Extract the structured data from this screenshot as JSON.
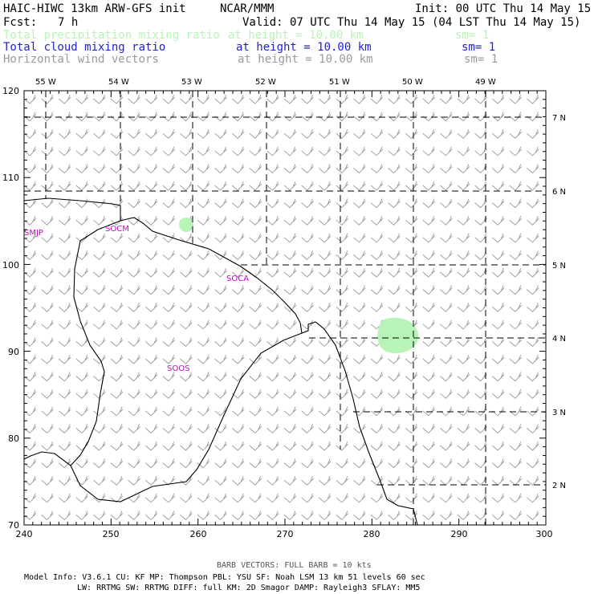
{
  "header": {
    "title": "HAIC-HIWC 13km ARW-GFS init",
    "org": "NCAR/MMM",
    "init": "Init: 00 UTC Thu 14 May 15",
    "fcst_label": "Fcst:",
    "fcst_value": "7 h",
    "valid": "Valid: 07 UTC Thu 14 May 15 (04 LST Thu 14 May 15)"
  },
  "fields": [
    {
      "name": "Total precipitation mixing ratio",
      "height": "at height = 10.00 km",
      "sm": "sm= 1",
      "color": "#b8f3b8"
    },
    {
      "name": "Total cloud mixing ratio",
      "height": "at height = 10.00 km",
      "sm": "sm= 1",
      "color": "#1f1fd6"
    },
    {
      "name": "Horizontal wind vectors",
      "height": "at height = 10.00 km",
      "sm": "sm= 1",
      "color": "#9a9a9a"
    }
  ],
  "lon_labels": [
    "55 W",
    "54 W",
    "53 W",
    "52 W",
    "51 W",
    "50 W",
    "49 W"
  ],
  "lat_labels": [
    "7 N",
    "6 N",
    "5 N",
    "4 N",
    "3 N",
    "2 N"
  ],
  "x_ticks": [
    "240",
    "250",
    "260",
    "270",
    "280",
    "290",
    "300"
  ],
  "y_ticks": [
    "120",
    "110",
    "100",
    "90",
    "80",
    "70"
  ],
  "stations": [
    "SMJP",
    "SOCM",
    "SOCA",
    "SOOS"
  ],
  "barb_note": "BARB VECTORS:  FULL BARB = 10 kts",
  "model_info": {
    "line1": "Model Info: V3.6.1    CU: KF      MP: Thompson    PBL: YSU      SF: Noah LSM     13 km   51 levels   60 sec",
    "line2": "LW: RRTMG    SW: RRTMG   DIFF: full    KM: 2D Smagor DAMP: Rayleigh3  SFLAY: MM5"
  },
  "colors": {
    "precip": "#b8f3b8",
    "cloud": "#1f1fd6",
    "wind": "#9a9a9a",
    "station": "#cc00cc",
    "coast": "#000000"
  }
}
